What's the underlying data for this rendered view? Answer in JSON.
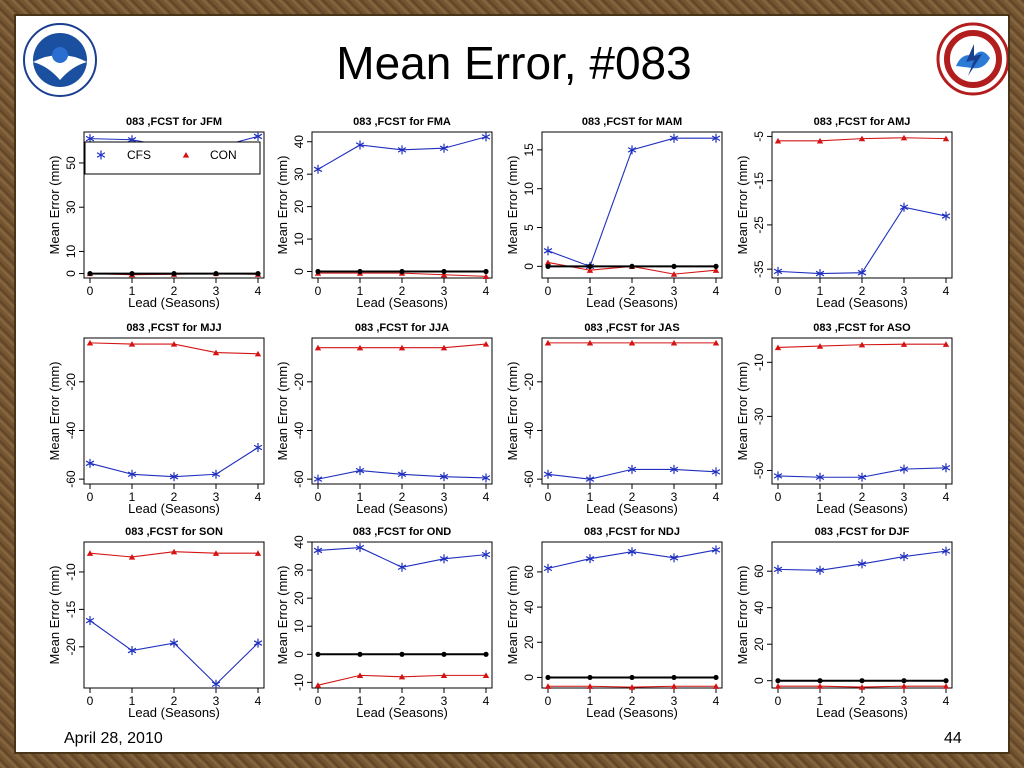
{
  "slide": {
    "title": "Mean Error, #083",
    "date": "April 28, 2010",
    "page_number": "44",
    "logos": [
      "noaa-logo",
      "nws-logo"
    ]
  },
  "colors": {
    "cfs": "#1f2fbf",
    "con": "#d41414",
    "zero": "#000000"
  },
  "chart_data": [
    {
      "type": "line",
      "title": "083 ,FCST for JFM",
      "xlabel": "Lead (Seasons)",
      "ylabel": "Mean Error (mm)",
      "x": [
        0,
        1,
        2,
        3,
        4
      ],
      "xticks": [
        0,
        1,
        2,
        3,
        4
      ],
      "yticks": [
        0,
        10,
        30,
        50
      ],
      "ylim": [
        -2,
        64
      ],
      "legend": "top-left",
      "legend_entries": [
        "CFS",
        "CON"
      ],
      "series": [
        {
          "name": "CFS",
          "values": [
            61,
            60.5,
            57,
            57,
            62
          ]
        },
        {
          "name": "CON",
          "values": [
            0,
            -0.5,
            -0.3,
            0,
            -0.3
          ]
        },
        {
          "values": [
            0,
            0,
            0,
            0,
            0
          ]
        }
      ]
    },
    {
      "type": "line",
      "title": "083 ,FCST for FMA",
      "xlabel": "Lead (Seasons)",
      "ylabel": "Mean Error (mm)",
      "x": [
        0,
        1,
        2,
        3,
        4
      ],
      "xticks": [
        0,
        1,
        2,
        3,
        4
      ],
      "yticks": [
        0,
        10,
        20,
        30,
        40
      ],
      "ylim": [
        -2,
        43
      ],
      "series": [
        {
          "name": "CFS",
          "values": [
            31.5,
            39,
            37.5,
            38,
            41.5
          ]
        },
        {
          "name": "CON",
          "values": [
            -0.5,
            -0.5,
            -0.5,
            -1,
            -1.5
          ]
        },
        {
          "values": [
            0,
            0,
            0,
            0,
            0
          ]
        }
      ]
    },
    {
      "type": "line",
      "title": "083 ,FCST for MAM",
      "xlabel": "Lead (Seasons)",
      "ylabel": "Mean Error (mm)",
      "x": [
        0,
        1,
        2,
        3,
        4
      ],
      "xticks": [
        0,
        1,
        2,
        3,
        4
      ],
      "yticks": [
        0,
        5,
        10,
        15
      ],
      "ylim": [
        -1.5,
        17.3
      ],
      "series": [
        {
          "name": "CFS",
          "values": [
            2,
            0,
            15,
            16.5,
            16.5
          ]
        },
        {
          "name": "CON",
          "values": [
            0.5,
            -0.5,
            0,
            -1,
            -0.5
          ]
        },
        {
          "values": [
            0,
            0,
            0,
            0,
            0
          ]
        }
      ]
    },
    {
      "type": "line",
      "title": "083 ,FCST for AMJ",
      "xlabel": "Lead (Seasons)",
      "ylabel": "Mean Error (mm)",
      "x": [
        0,
        1,
        2,
        3,
        4
      ],
      "xticks": [
        0,
        1,
        2,
        3,
        4
      ],
      "yticks": [
        -35,
        -25,
        -15,
        -5
      ],
      "ylim": [
        -37,
        -4
      ],
      "series": [
        {
          "name": "CFS",
          "values": [
            -35.5,
            -36,
            -35.8,
            -21,
            -23
          ]
        },
        {
          "name": "CON",
          "values": [
            -6,
            -6,
            -5.5,
            -5.3,
            -5.5
          ]
        }
      ]
    },
    {
      "type": "line",
      "title": "083 ,FCST for MJJ",
      "xlabel": "Lead (Seasons)",
      "ylabel": "Mean Error (mm)",
      "x": [
        0,
        1,
        2,
        3,
        4
      ],
      "xticks": [
        0,
        1,
        2,
        3,
        4
      ],
      "yticks": [
        -60,
        -40,
        -20
      ],
      "ylim": [
        -62,
        -2
      ],
      "series": [
        {
          "name": "CFS",
          "values": [
            -53.5,
            -58,
            -59,
            -58,
            -47
          ]
        },
        {
          "name": "CON",
          "values": [
            -4,
            -4.5,
            -4.5,
            -8,
            -8.5
          ]
        }
      ]
    },
    {
      "type": "line",
      "title": "083 ,FCST for JJA",
      "xlabel": "Lead (Seasons)",
      "ylabel": "Mean Error (mm)",
      "x": [
        0,
        1,
        2,
        3,
        4
      ],
      "xticks": [
        0,
        1,
        2,
        3,
        4
      ],
      "yticks": [
        -60,
        -40,
        -20
      ],
      "ylim": [
        -62,
        -2
      ],
      "series": [
        {
          "name": "CFS",
          "values": [
            -60,
            -56.5,
            -58,
            -59,
            -59.5
          ]
        },
        {
          "name": "CON",
          "values": [
            -6,
            -6,
            -6,
            -6,
            -4.5
          ]
        }
      ]
    },
    {
      "type": "line",
      "title": "083 ,FCST for JAS",
      "xlabel": "Lead (Seasons)",
      "ylabel": "Mean Error (mm)",
      "x": [
        0,
        1,
        2,
        3,
        4
      ],
      "xticks": [
        0,
        1,
        2,
        3,
        4
      ],
      "yticks": [
        -60,
        -40,
        -20
      ],
      "ylim": [
        -62,
        -2
      ],
      "series": [
        {
          "name": "CFS",
          "values": [
            -58,
            -60,
            -56,
            -56,
            -57
          ]
        },
        {
          "name": "CON",
          "values": [
            -4,
            -4,
            -4,
            -4,
            -4
          ]
        }
      ]
    },
    {
      "type": "line",
      "title": "083 ,FCST for ASO",
      "xlabel": "Lead (Seasons)",
      "ylabel": "Mean Error (mm)",
      "x": [
        0,
        1,
        2,
        3,
        4
      ],
      "xticks": [
        0,
        1,
        2,
        3,
        4
      ],
      "yticks": [
        -50,
        -30,
        -10
      ],
      "ylim": [
        -55,
        -1
      ],
      "series": [
        {
          "name": "CFS",
          "values": [
            -52,
            -52.5,
            -52.5,
            -49.5,
            -49
          ]
        },
        {
          "name": "CON",
          "values": [
            -4.5,
            -4,
            -3.5,
            -3.3,
            -3.3
          ]
        }
      ]
    },
    {
      "type": "line",
      "title": "083 ,FCST for SON",
      "xlabel": "Lead (Seasons)",
      "ylabel": "Mean Error (mm)",
      "x": [
        0,
        1,
        2,
        3,
        4
      ],
      "xticks": [
        0,
        1,
        2,
        3,
        4
      ],
      "yticks": [
        -20,
        -15,
        -10
      ],
      "ylim": [
        -25.5,
        -6
      ],
      "series": [
        {
          "name": "CFS",
          "values": [
            -16.5,
            -20.5,
            -19.5,
            -25,
            -19.5
          ]
        },
        {
          "name": "CON",
          "values": [
            -7.5,
            -8,
            -7.3,
            -7.5,
            -7.5
          ]
        }
      ]
    },
    {
      "type": "line",
      "title": "083 ,FCST for OND",
      "xlabel": "Lead (Seasons)",
      "ylabel": "Mean Error (mm)",
      "x": [
        0,
        1,
        2,
        3,
        4
      ],
      "xticks": [
        0,
        1,
        2,
        3,
        4
      ],
      "yticks": [
        -10,
        0,
        10,
        20,
        30,
        40
      ],
      "ylim": [
        -12,
        40
      ],
      "series": [
        {
          "name": "CFS",
          "values": [
            37,
            38,
            31,
            34,
            35.5
          ]
        },
        {
          "name": "CON",
          "values": [
            -11,
            -7.5,
            -8,
            -7.5,
            -7.5
          ]
        },
        {
          "values": [
            0,
            0,
            0,
            0,
            0
          ]
        }
      ]
    },
    {
      "type": "line",
      "title": "083 ,FCST for NDJ",
      "xlabel": "Lead (Seasons)",
      "ylabel": "Mean Error (mm)",
      "x": [
        0,
        1,
        2,
        3,
        4
      ],
      "xticks": [
        0,
        1,
        2,
        3,
        4
      ],
      "yticks": [
        0,
        20,
        40,
        60
      ],
      "ylim": [
        -6,
        77
      ],
      "series": [
        {
          "name": "CFS",
          "values": [
            62,
            67.5,
            71.5,
            68,
            72.5
          ]
        },
        {
          "name": "CON",
          "values": [
            -5,
            -5,
            -5.5,
            -5,
            -5
          ]
        },
        {
          "values": [
            0,
            0,
            0,
            0,
            0
          ]
        }
      ]
    },
    {
      "type": "line",
      "title": "083 ,FCST for DJF",
      "xlabel": "Lead (Seasons)",
      "ylabel": "Mean Error (mm)",
      "x": [
        0,
        1,
        2,
        3,
        4
      ],
      "xticks": [
        0,
        1,
        2,
        3,
        4
      ],
      "yticks": [
        0,
        20,
        40,
        60
      ],
      "ylim": [
        -4,
        76
      ],
      "series": [
        {
          "name": "CFS",
          "values": [
            61,
            60.5,
            64,
            68,
            71
          ]
        },
        {
          "name": "CON",
          "values": [
            -3,
            -3,
            -3.5,
            -3,
            -3
          ]
        },
        {
          "values": [
            0,
            0,
            0,
            0,
            0
          ]
        }
      ]
    }
  ]
}
